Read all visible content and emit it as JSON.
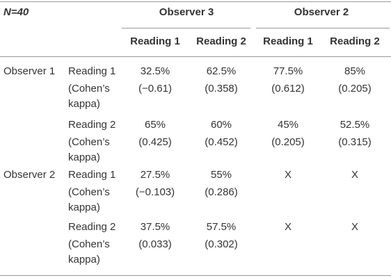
{
  "table": {
    "n_label": "N=40",
    "groups": [
      "Observer 3",
      "Observer 2"
    ],
    "columns": [
      "Reading 1",
      "Reading 2",
      "Reading 1",
      "Reading 2"
    ],
    "rows": [
      {
        "observer": "Observer 1",
        "reading": "Reading 1",
        "agreement": [
          "32.5%",
          "62.5%",
          "77.5%",
          "85%"
        ],
        "kappa_label": "(Cohen’s kappa)",
        "kappa": [
          "(−0.61)",
          "(0.358)",
          "(0.612)",
          "(0.205)"
        ]
      },
      {
        "reading": "Reading 2",
        "agreement": [
          "65%",
          "60%",
          "45%",
          "52.5%"
        ],
        "kappa_label": "(Cohen’s kappa)",
        "kappa": [
          "(0.425)",
          "(0.452)",
          "(0.205)",
          "(0.315)"
        ]
      },
      {
        "observer": "Observer 2",
        "reading": "Reading 1",
        "agreement": [
          "27.5%",
          "55%",
          "X",
          "X"
        ],
        "kappa_label": "(Cohen’s kappa)",
        "kappa": [
          "(−0.103)",
          "(0.286)"
        ]
      },
      {
        "reading": "Reading 2",
        "agreement": [
          "37.5%",
          "57.5%",
          "X",
          "X"
        ],
        "kappa_label": "(Cohen’s kappa)",
        "kappa": [
          "(0.033)",
          "(0.302)"
        ]
      }
    ]
  }
}
